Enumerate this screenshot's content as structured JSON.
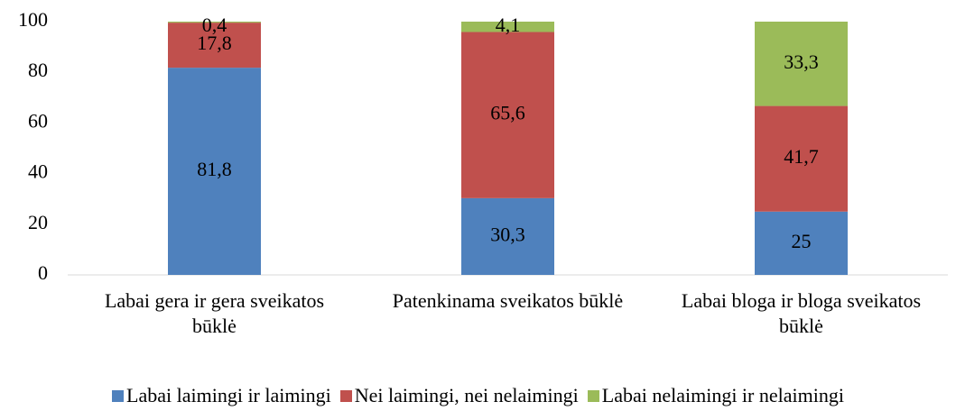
{
  "chart_data": {
    "type": "stacked_bar",
    "categories": [
      "Labai gera ir gera sveikatos būklė",
      "Patenkinama sveikatos būklė",
      "Labai bloga ir bloga sveikatos būklė"
    ],
    "series": [
      {
        "name": "Labai laimingi ir laimingi",
        "color": "#4f81bd",
        "values": [
          81.8,
          30.3,
          25
        ],
        "value_labels": [
          "81,8",
          "30,3",
          "25"
        ]
      },
      {
        "name": "Nei laimingi, nei nelaimingi",
        "color": "#c0504d",
        "values": [
          17.8,
          65.6,
          41.7
        ],
        "value_labels": [
          "17,8",
          "65,6",
          "41,7"
        ]
      },
      {
        "name": "Labai nelaimingi ir nelaimingi",
        "color": "#9bbb59",
        "values": [
          0.4,
          4.1,
          33.3
        ],
        "value_labels": [
          "0,4",
          "4,1",
          "33,3"
        ]
      }
    ],
    "ylim": [
      0,
      100
    ],
    "yticks": [
      0,
      20,
      40,
      60,
      80,
      100
    ],
    "grid": false,
    "legend": "bottom"
  }
}
